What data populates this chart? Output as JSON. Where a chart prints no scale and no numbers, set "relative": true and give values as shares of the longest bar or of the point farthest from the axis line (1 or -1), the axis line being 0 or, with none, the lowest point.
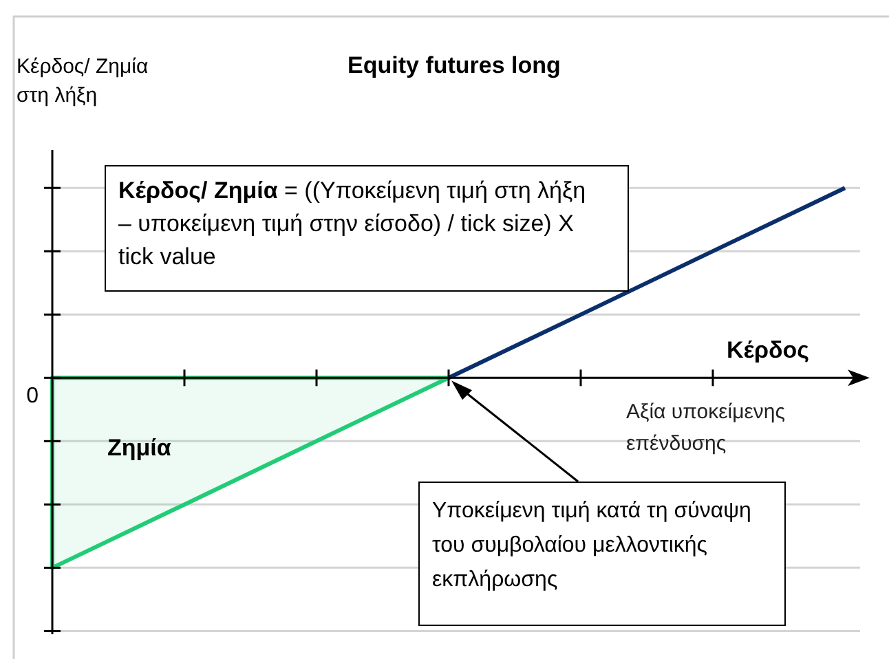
{
  "chart_data": {
    "type": "line",
    "relative": true,
    "title": "Equity futures long",
    "ylabel": "Κέρδος/ Ζημία στη λήξη",
    "xlabel": "Αξία υποκείμενης επένδυσης",
    "categories": [
      null,
      null,
      null,
      null,
      null,
      null,
      null
    ],
    "series": [
      {
        "type": "area",
        "color": "#22cc77",
        "values": [
          -1,
          -0.667,
          -0.333,
          0,
          null,
          null,
          null
        ]
      },
      {
        "type": "line",
        "color": "#0b2f6b",
        "values": [
          null,
          null,
          null,
          0,
          0.333,
          0.667,
          1
        ]
      }
    ],
    "grid": "y",
    "annotations": [
      "Κέρδος/ Ζημία = ((Υποκείμενη τιμή στη λήξη – υποκείμενη τιμή στην είσοδο) / tick size) X tick value",
      "Κέρδος",
      "Ζημία",
      "Υποκείμενη τιμή κατά τη σύναψη του συμβολαίου μελλοντικής εκπλήρωσης",
      "0"
    ]
  }
}
